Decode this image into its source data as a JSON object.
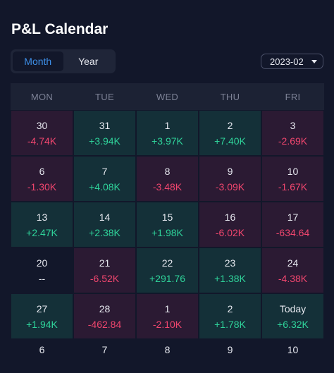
{
  "title": "P&L Calendar",
  "tabs": [
    {
      "label": "Month",
      "active": true
    },
    {
      "label": "Year",
      "active": false
    }
  ],
  "period": "2023-02",
  "weekdays": [
    "MON",
    "TUE",
    "WED",
    "THU",
    "FRI"
  ],
  "weeks": [
    [
      {
        "day": "30",
        "pnl": "-4.74K",
        "type": "neg"
      },
      {
        "day": "31",
        "pnl": "+3.94K",
        "type": "pos"
      },
      {
        "day": "1",
        "pnl": "+3.97K",
        "type": "pos"
      },
      {
        "day": "2",
        "pnl": "+7.40K",
        "type": "pos"
      },
      {
        "day": "3",
        "pnl": "-2.69K",
        "type": "neg"
      }
    ],
    [
      {
        "day": "6",
        "pnl": "-1.30K",
        "type": "neg"
      },
      {
        "day": "7",
        "pnl": "+4.08K",
        "type": "pos"
      },
      {
        "day": "8",
        "pnl": "-3.48K",
        "type": "neg"
      },
      {
        "day": "9",
        "pnl": "-3.09K",
        "type": "neg"
      },
      {
        "day": "10",
        "pnl": "-1.67K",
        "type": "neg"
      }
    ],
    [
      {
        "day": "13",
        "pnl": "+2.47K",
        "type": "pos"
      },
      {
        "day": "14",
        "pnl": "+2.38K",
        "type": "pos"
      },
      {
        "day": "15",
        "pnl": "+1.98K",
        "type": "pos"
      },
      {
        "day": "16",
        "pnl": "-6.02K",
        "type": "neg"
      },
      {
        "day": "17",
        "pnl": "-634.64",
        "type": "neg"
      }
    ],
    [
      {
        "day": "20",
        "pnl": "--",
        "type": "flat"
      },
      {
        "day": "21",
        "pnl": "-6.52K",
        "type": "neg"
      },
      {
        "day": "22",
        "pnl": "+291.76",
        "type": "pos"
      },
      {
        "day": "23",
        "pnl": "+1.38K",
        "type": "pos"
      },
      {
        "day": "24",
        "pnl": "-4.38K",
        "type": "neg"
      }
    ],
    [
      {
        "day": "27",
        "pnl": "+1.94K",
        "type": "pos"
      },
      {
        "day": "28",
        "pnl": "-462.84",
        "type": "neg"
      },
      {
        "day": "1",
        "pnl": "-2.10K",
        "type": "neg"
      },
      {
        "day": "2",
        "pnl": "+1.78K",
        "type": "pos"
      },
      {
        "day": "Today",
        "pnl": "+6.32K",
        "type": "pos"
      }
    ]
  ],
  "next_week_days": [
    "6",
    "7",
    "8",
    "9",
    "10"
  ],
  "colors": {
    "background": "#12172a",
    "accent": "#3d8fe8",
    "profit": "#2fd39a",
    "loss": "#f0466e"
  }
}
